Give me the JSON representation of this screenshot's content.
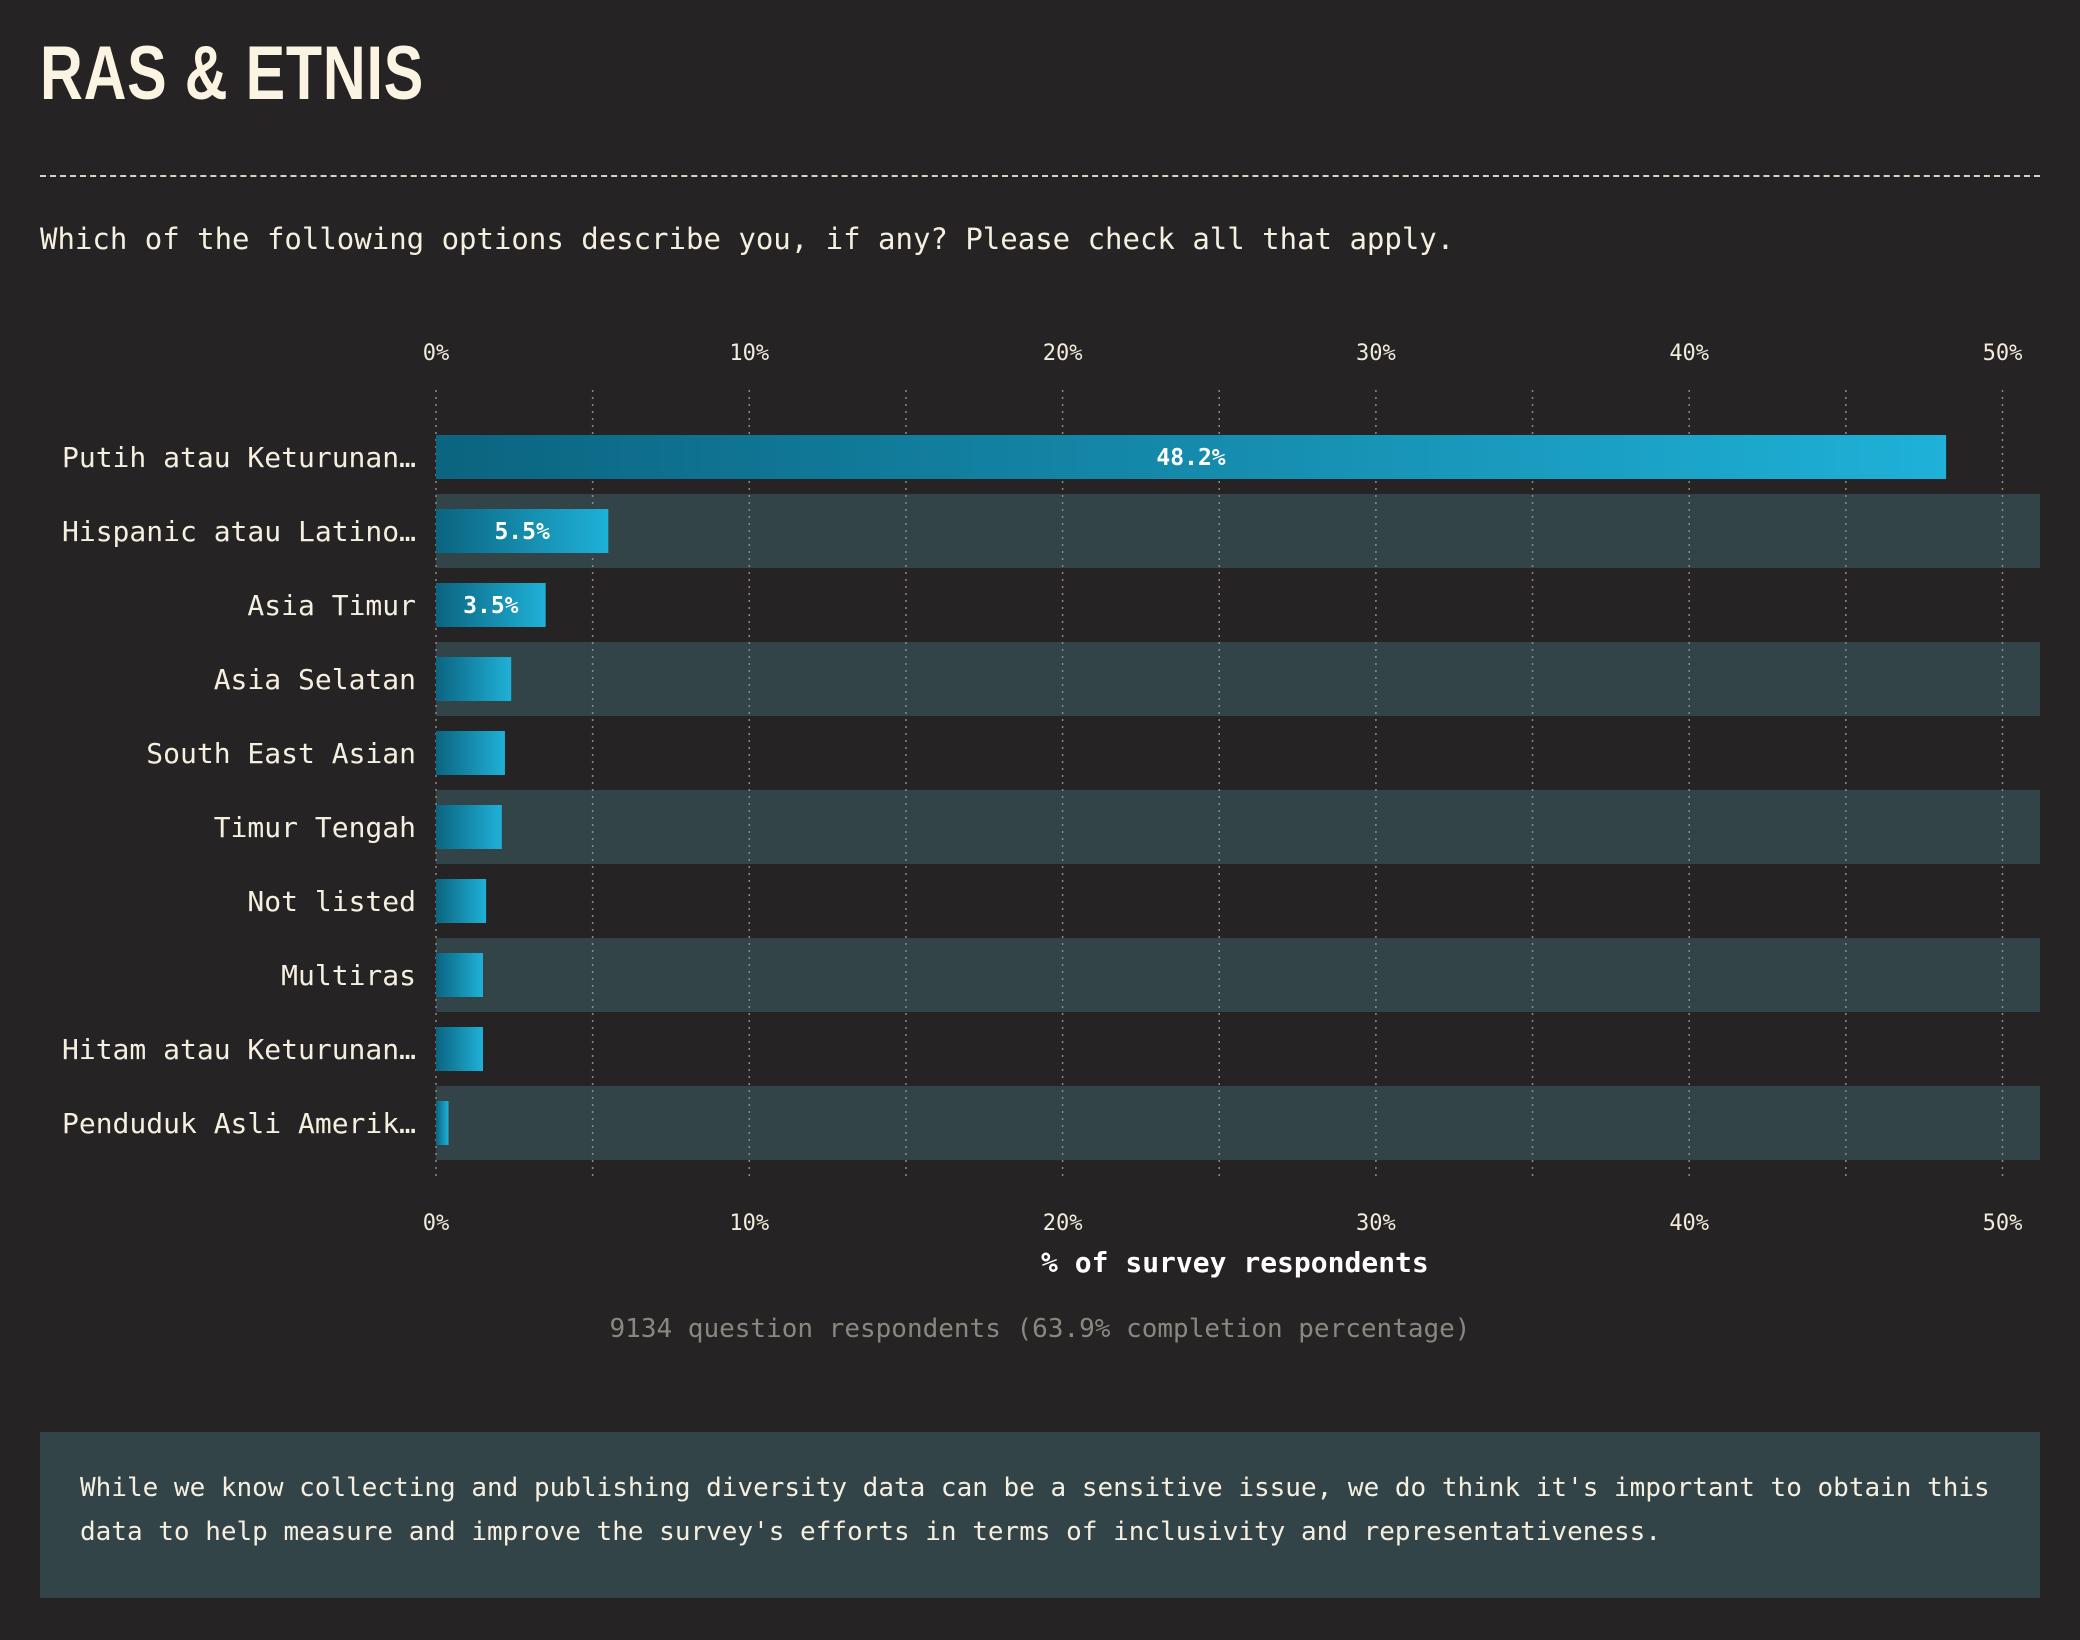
{
  "title": "RAS & ETNIS",
  "question": "Which of the following options describe you, if any? Please check all that apply.",
  "chart_data": {
    "type": "bar",
    "orientation": "horizontal",
    "categories": [
      "Putih atau Keturunan…",
      "Hispanic atau Latino…",
      "Asia Timur",
      "Asia Selatan",
      "South East Asian",
      "Timur Tengah",
      "Not listed",
      "Multiras",
      "Hitam atau Keturunan…",
      "Penduduk Asli Amerik…"
    ],
    "values": [
      48.2,
      5.5,
      3.5,
      2.4,
      2.2,
      2.1,
      1.6,
      1.5,
      1.5,
      0.4
    ],
    "value_labels": [
      "48.2%",
      "5.5%",
      "3.5%",
      "",
      "",
      "",
      "",
      "",
      "",
      ""
    ],
    "xlim": [
      0,
      51.3
    ],
    "xticks": [
      "0%",
      "10%",
      "20%",
      "30%",
      "40%",
      "50%"
    ],
    "xtick_values": [
      0,
      10,
      20,
      30,
      40,
      50
    ],
    "xlabel": "% of survey respondents",
    "grid": true,
    "colors": {
      "bar_start": "#0b6480",
      "bar_end": "#1fb1d8",
      "row_band": "#334448",
      "grid": "#8a8a86"
    }
  },
  "footnote": "9134 question respondents (63.9% completion percentage)",
  "note": "While we know collecting and publishing diversity data can be a sensitive issue, we do think it's important to obtain this data to help measure and improve the survey's efforts in terms of inclusivity and representativeness."
}
